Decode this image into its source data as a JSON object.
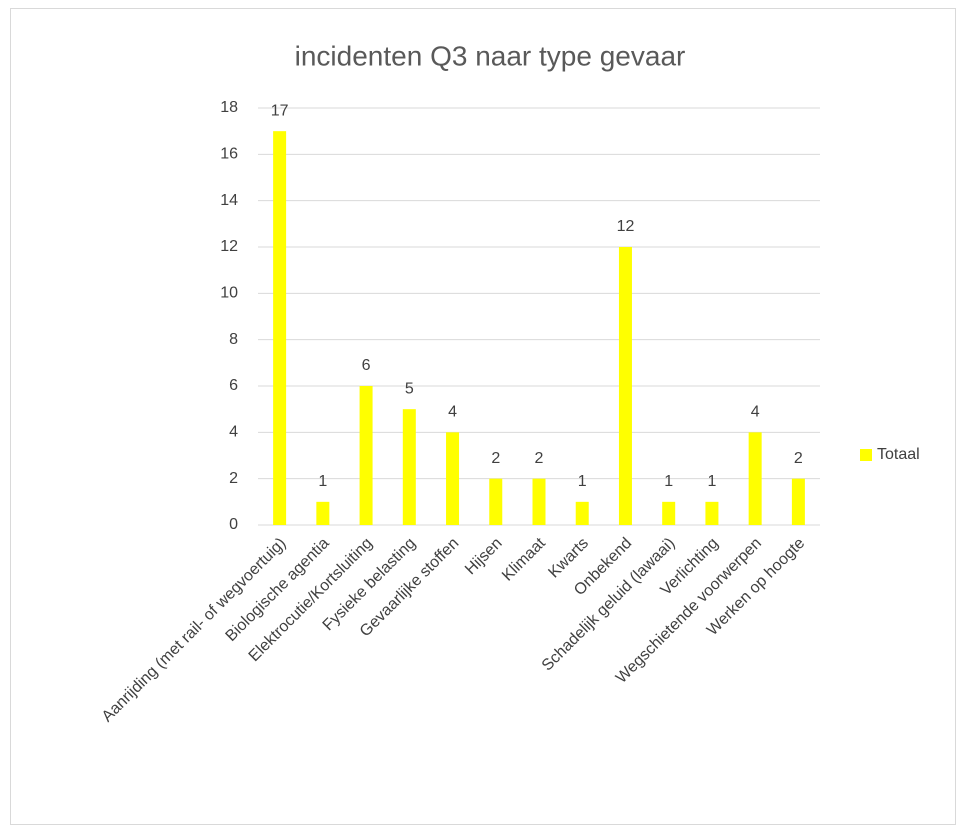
{
  "chart_data": {
    "type": "bar",
    "title": "incidenten Q3 naar type gevaar",
    "categories": [
      "Aanrijding (met rail- of wegvoertuig)",
      "Biologische agentia",
      "Elektrocutie/Kortsluiting",
      "Fysieke belasting",
      "Gevaarlijke stoffen",
      "Hijsen",
      "Klimaat",
      "Kwarts",
      "Onbekend",
      "Schadelijk geluid (lawaai)",
      "Verlichting",
      "Wegschietende voorwerpen",
      "Werken op hoogte"
    ],
    "series": [
      {
        "name": "Totaal",
        "color": "#ffff00",
        "values": [
          17,
          1,
          6,
          5,
          4,
          2,
          2,
          1,
          12,
          1,
          1,
          4,
          2
        ]
      }
    ],
    "ylim": [
      0,
      18
    ],
    "yticks": [
      0,
      2,
      4,
      6,
      8,
      10,
      12,
      14,
      16,
      18
    ],
    "grid": true,
    "legend": "right"
  }
}
